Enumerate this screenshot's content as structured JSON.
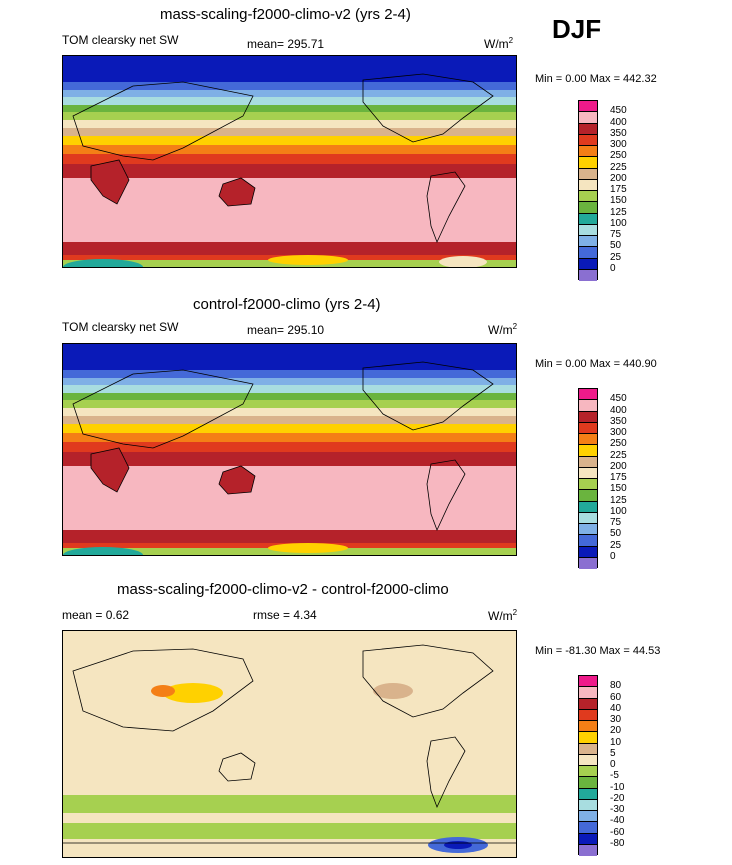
{
  "season": "DJF",
  "panels": [
    {
      "title": "mass-scaling-f2000-climo-v2 (yrs 2-4)",
      "variable": "TOM clearsky net SW",
      "mean_label": "mean= 295.71",
      "units_base": "W/m",
      "units_sup": "2",
      "minmax": "Min =   0.00 Max = 442.32",
      "type": "field"
    },
    {
      "title": "control-f2000-climo (yrs 2-4)",
      "variable": "TOM clearsky net SW",
      "mean_label": "mean= 295.10",
      "units_base": "W/m",
      "units_sup": "2",
      "minmax": "Min =   0.00 Max = 440.90",
      "type": "field"
    },
    {
      "title": "mass-scaling-f2000-climo-v2 - control-f2000-climo",
      "mean_label": "mean =   0.62",
      "rmse_label": "rmse =   4.34",
      "units_base": "W/m",
      "units_sup": "2",
      "minmax": "Min = -81.30 Max =  44.53",
      "type": "diff"
    }
  ],
  "field_colorbar": {
    "labels": [
      "450",
      "400",
      "350",
      "300",
      "250",
      "225",
      "200",
      "175",
      "150",
      "125",
      "100",
      "75",
      "50",
      "25",
      "0"
    ],
    "colors": [
      "#ee1a8a",
      "#f7b7c0",
      "#b5222a",
      "#e03a1e",
      "#f47f16",
      "#ffd100",
      "#d9b38c",
      "#f5e5c0",
      "#a6d050",
      "#6ab43e",
      "#22a99a",
      "#a8dde0",
      "#7fb0e6",
      "#4469d8",
      "#0a1ab8",
      "#8a6fd1"
    ]
  },
  "diff_colorbar": {
    "labels": [
      "80",
      "60",
      "40",
      "30",
      "20",
      "10",
      "5",
      "0",
      "-5",
      "-10",
      "-20",
      "-30",
      "-40",
      "-60",
      "-80"
    ],
    "colors": [
      "#ee1a8a",
      "#f7b7c0",
      "#b5222a",
      "#e03a1e",
      "#f47f16",
      "#ffd100",
      "#d9b38c",
      "#f5e5c0",
      "#a6d050",
      "#6ab43e",
      "#22a99a",
      "#a8dde0",
      "#7fb0e6",
      "#4469d8",
      "#0a1ab8",
      "#8a6fd1"
    ]
  }
}
